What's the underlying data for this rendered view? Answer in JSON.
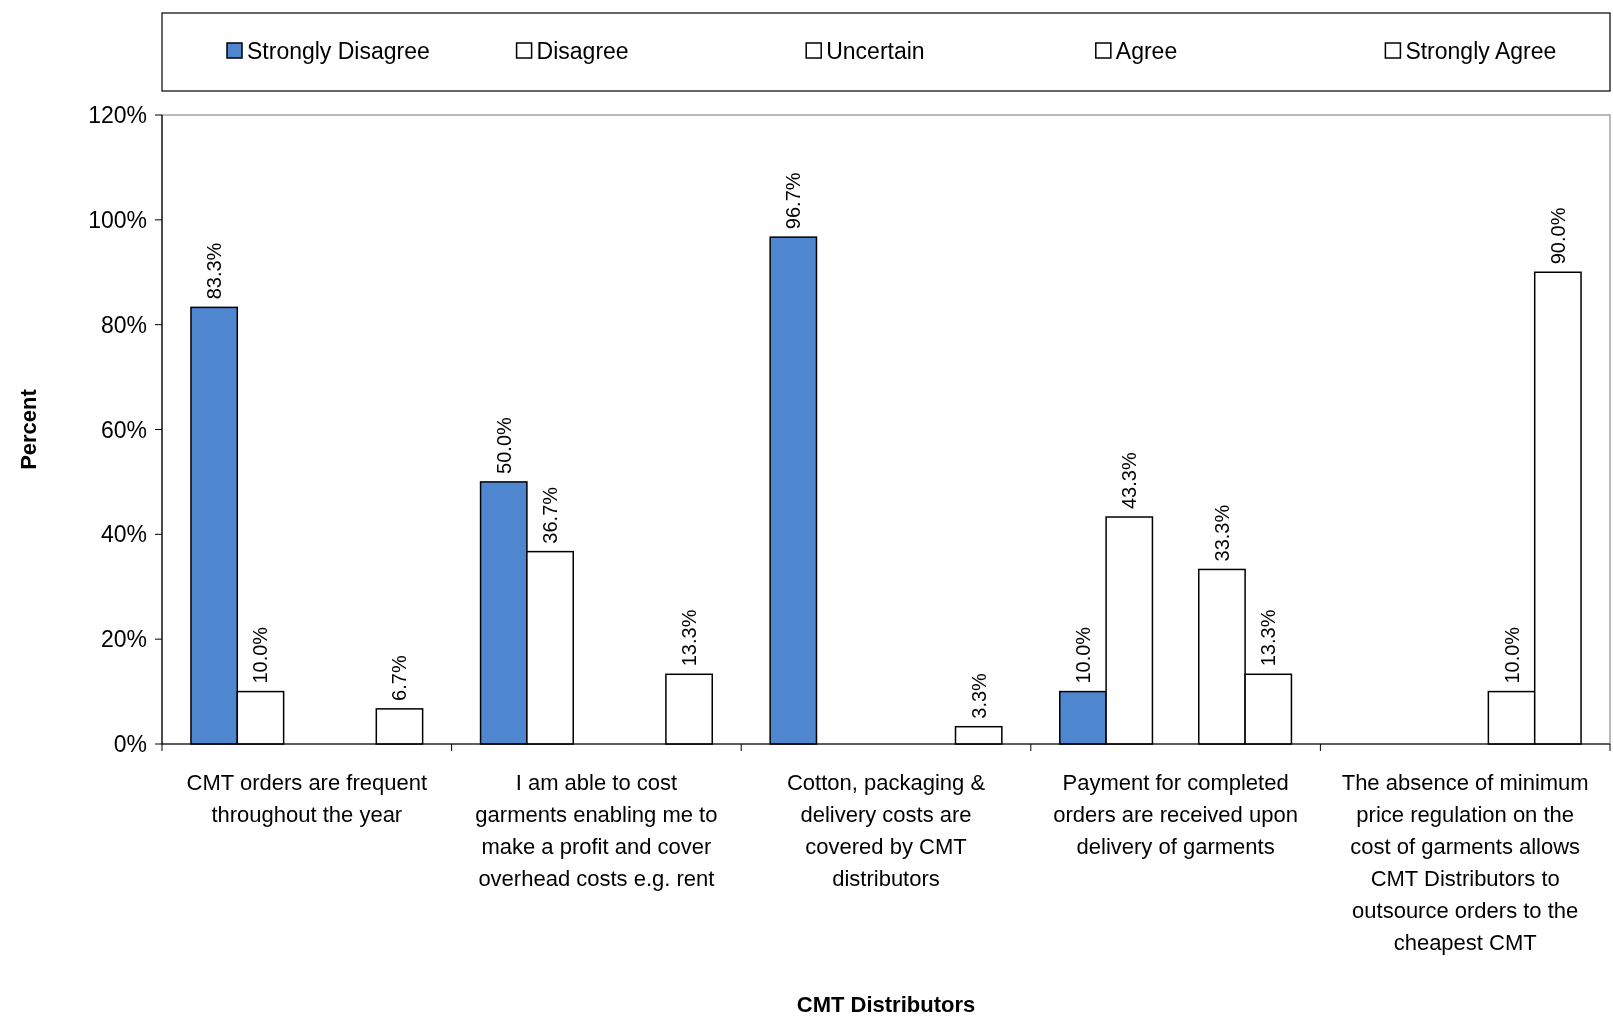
{
  "chart_data": {
    "type": "bar",
    "xlabel": "CMT Distributors",
    "ylabel": "Percent",
    "categories": [
      "CMT orders are frequent throughout the year",
      "I am able to cost garments enabling me to make a profit and cover overhead costs e.g. rent",
      "Cotton, packaging & delivery costs are covered by CMT distributors",
      "Payment for completed orders are received upon delivery of garments",
      "The absence of minimum price regulation on the cost of garments allows CMT Distributors to outsource orders to the cheapest CMT"
    ],
    "series": [
      {
        "name": "Strongly Disagree",
        "color": "#4f86d0",
        "values": [
          83.3,
          50.0,
          96.7,
          10.0,
          null
        ],
        "value_labels": [
          "83.3%",
          "50.0%",
          "96.7%",
          "10.0%",
          null
        ]
      },
      {
        "name": "Disagree",
        "color": "#ffffff",
        "values": [
          10.0,
          36.7,
          null,
          43.3,
          null
        ],
        "value_labels": [
          "10.0%",
          "36.7%",
          null,
          "43.3%",
          null
        ]
      },
      {
        "name": "Uncertain",
        "color": "#ffffff",
        "values": [
          null,
          null,
          null,
          null,
          null
        ],
        "value_labels": [
          null,
          null,
          null,
          null,
          null
        ]
      },
      {
        "name": "Agree",
        "color": "#ffffff",
        "values": [
          null,
          null,
          null,
          33.3,
          10.0
        ],
        "value_labels": [
          null,
          null,
          null,
          "33.3%",
          "10.0%"
        ]
      },
      {
        "name": "Strongly Agree",
        "color": "#ffffff",
        "values": [
          6.7,
          13.3,
          3.3,
          13.3,
          90.0
        ],
        "value_labels": [
          "6.7%",
          "13.3%",
          "3.3%",
          "13.3%",
          "90.0%"
        ]
      }
    ],
    "ylim": [
      0,
      120
    ],
    "yticks": [
      {
        "value": 0,
        "label": "0%"
      },
      {
        "value": 20,
        "label": "20%"
      },
      {
        "value": 40,
        "label": "40%"
      },
      {
        "value": 60,
        "label": "60%"
      },
      {
        "value": 80,
        "label": "80%"
      },
      {
        "value": 100,
        "label": "100%"
      },
      {
        "value": 120,
        "label": "120%"
      }
    ],
    "grid": false,
    "legend": "top"
  }
}
